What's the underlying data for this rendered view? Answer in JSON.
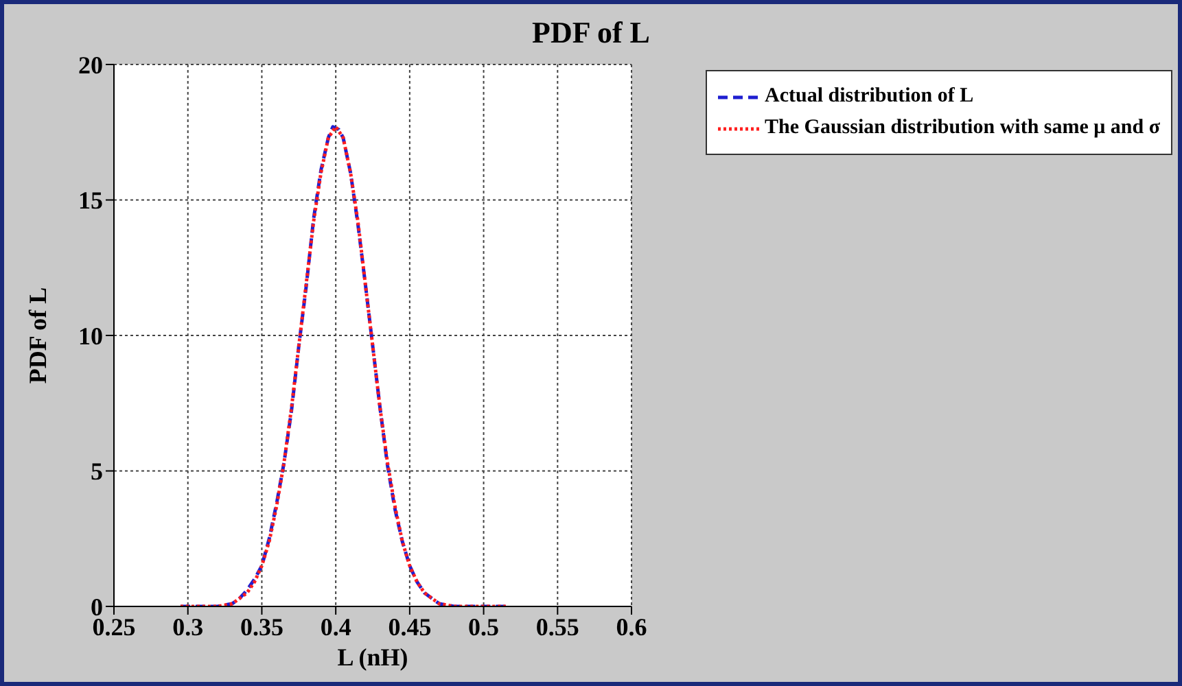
{
  "chart_data": {
    "type": "line",
    "title": "PDF of L",
    "xlabel": "L (nH)",
    "ylabel": "PDF of L",
    "xlim": [
      0.25,
      0.6
    ],
    "xticks": [
      0.25,
      0.3,
      0.35,
      0.4,
      0.45,
      0.5,
      0.55,
      0.6
    ],
    "ylim": [
      0,
      20
    ],
    "yticks": [
      0,
      5,
      10,
      15,
      20
    ],
    "grid": true,
    "legend": "top right",
    "series": [
      {
        "name": "Actual distribution of L",
        "color": "#1f1fd0",
        "line_style": "dashed",
        "x": [
          0.295,
          0.31,
          0.32,
          0.33,
          0.335,
          0.34,
          0.345,
          0.35,
          0.355,
          0.36,
          0.365,
          0.37,
          0.375,
          0.38,
          0.385,
          0.39,
          0.395,
          0.398,
          0.402,
          0.405,
          0.41,
          0.415,
          0.42,
          0.425,
          0.43,
          0.435,
          0.44,
          0.445,
          0.45,
          0.455,
          0.46,
          0.465,
          0.47,
          0.48,
          0.49,
          0.5,
          0.515
        ],
        "values": [
          0,
          0,
          0,
          0.1,
          0.3,
          0.6,
          1.0,
          1.5,
          2.5,
          3.8,
          5.3,
          7.2,
          9.6,
          11.8,
          14.3,
          16.1,
          17.3,
          17.7,
          17.6,
          17.3,
          16.0,
          14.1,
          11.9,
          9.6,
          7.3,
          5.2,
          3.6,
          2.4,
          1.5,
          0.9,
          0.5,
          0.3,
          0.1,
          0,
          0,
          0,
          0
        ]
      },
      {
        "name": "The Gaussian distribution with same μ and  σ",
        "color": "#ff1f1f",
        "line_style": "dotted",
        "x": [
          0.295,
          0.31,
          0.32,
          0.33,
          0.335,
          0.34,
          0.345,
          0.35,
          0.355,
          0.36,
          0.365,
          0.37,
          0.375,
          0.38,
          0.385,
          0.39,
          0.395,
          0.4,
          0.405,
          0.41,
          0.415,
          0.42,
          0.425,
          0.43,
          0.435,
          0.44,
          0.445,
          0.45,
          0.455,
          0.46,
          0.465,
          0.47,
          0.48,
          0.49,
          0.5,
          0.515
        ],
        "values": [
          0,
          0,
          0,
          0.1,
          0.3,
          0.5,
          0.9,
          1.5,
          2.4,
          3.7,
          5.3,
          7.3,
          9.6,
          11.9,
          14.2,
          16.0,
          17.3,
          17.7,
          17.3,
          16.0,
          14.2,
          11.9,
          9.6,
          7.3,
          5.3,
          3.7,
          2.4,
          1.5,
          0.9,
          0.5,
          0.3,
          0.1,
          0,
          0,
          0,
          0
        ]
      }
    ]
  }
}
